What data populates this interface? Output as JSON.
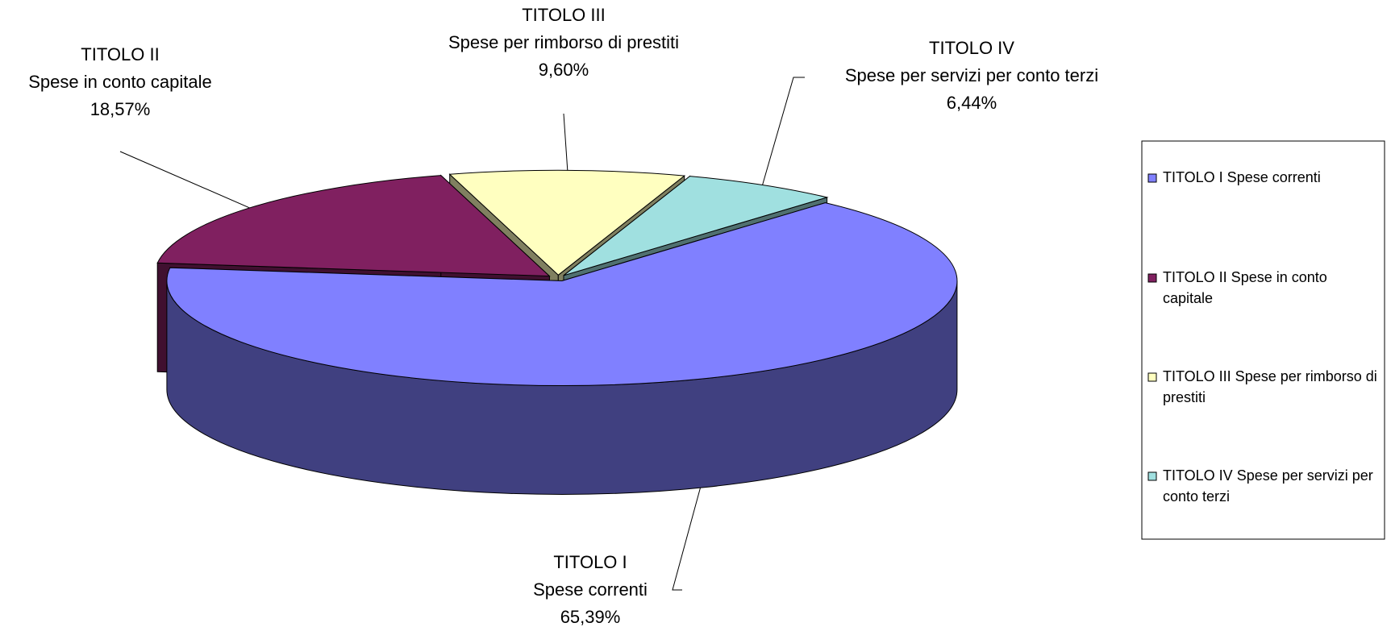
{
  "chart_data": {
    "type": "pie3d",
    "categories": [
      "TITOLO I Spese correnti",
      "TITOLO II Spese in conto capitale",
      "TITOLO III Spese per rimborso di prestiti",
      "TITOLO IV Spese per servizi per conto terzi"
    ],
    "labels": [
      {
        "title": "TITOLO I",
        "text": "Spese correnti"
      },
      {
        "title": "TITOLO II",
        "text": "Spese in conto capitale"
      },
      {
        "title": "TITOLO III",
        "text": "Spese per rimborso di prestiti"
      },
      {
        "title": "TITOLO IV",
        "text": "Spese per servizi per conto terzi"
      }
    ],
    "values": [
      65.39,
      18.57,
      9.6,
      6.44
    ],
    "value_labels": [
      "65,39%",
      "18,57%",
      "9,60%",
      "6,44%"
    ],
    "colors": [
      "#8080ff",
      "#802060",
      "#ffffc0",
      "#a0e0e0"
    ],
    "legend": "right"
  }
}
